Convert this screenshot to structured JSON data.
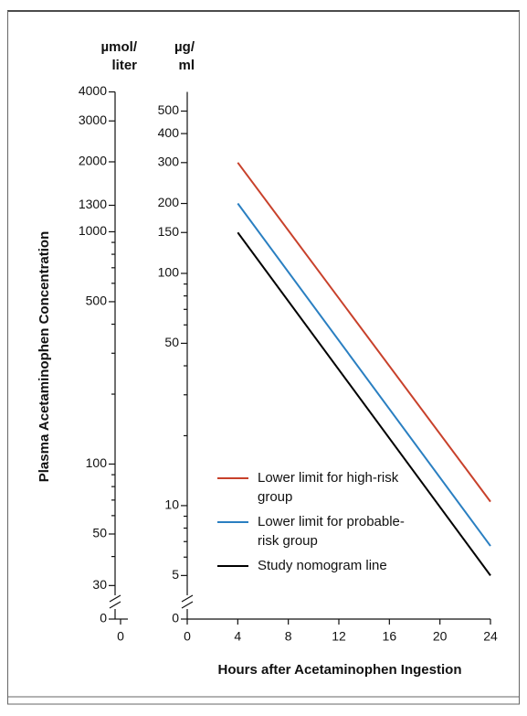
{
  "chart_data": {
    "type": "line",
    "y_title": "Plasma Acetaminophen Concentration",
    "x_title": "Hours after Acetaminophen Ingestion",
    "y_unit": [
      "µg/",
      "ml"
    ],
    "y2_unit": [
      "µmol/",
      "liter"
    ],
    "x": [
      4,
      24
    ],
    "series": [
      {
        "name": "Lower limit for high-risk group",
        "color": "#c8412b",
        "values": [
          300,
          10.4
        ]
      },
      {
        "name": "Lower limit for probable-risk group",
        "color": "#2a7fc1",
        "values": [
          200,
          6.7
        ]
      },
      {
        "name": "Study nomogram line",
        "color": "#000000",
        "values": [
          150,
          5
        ]
      }
    ],
    "log_scale": true,
    "xlim": [
      0,
      24
    ],
    "xticks": [
      0,
      4,
      8,
      12,
      16,
      20,
      24
    ],
    "x2ticks": [
      0
    ],
    "ylim": [
      4.3,
      604.7
    ],
    "yticks": [
      0,
      5,
      10,
      50,
      100,
      150,
      200,
      300,
      400,
      500
    ],
    "yminorticks": [
      6,
      7,
      8,
      9,
      20,
      30,
      40,
      60,
      70,
      80,
      90
    ],
    "y2lim": [
      28.5,
      4000
    ],
    "y2ticks": [
      0,
      30,
      50,
      100,
      500,
      1000,
      1300,
      2000,
      3000,
      4000
    ],
    "y2minorticks": [
      40,
      60,
      70,
      80,
      90,
      200,
      300,
      400,
      600,
      700,
      800,
      900
    ]
  }
}
